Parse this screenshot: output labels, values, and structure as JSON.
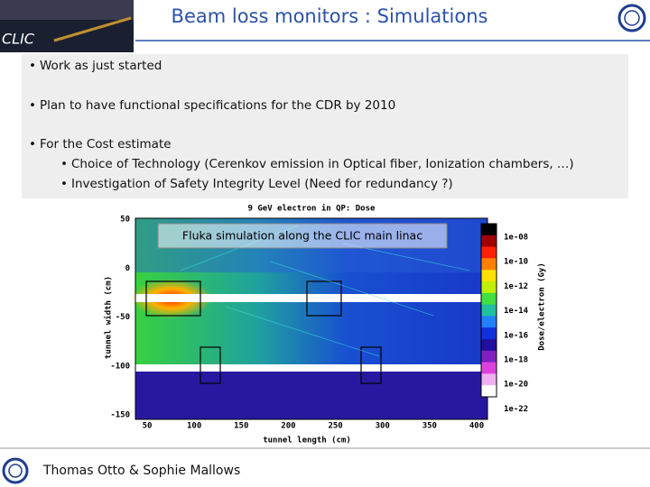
{
  "header": {
    "title": "Beam loss monitors : Simulations",
    "logo_text": "CLIC"
  },
  "bullets": [
    {
      "text": "Work as just started"
    },
    {
      "text": "Plan to have functional specifications for the CDR by 2010"
    },
    {
      "text": "For the Cost estimate",
      "items": [
        "Choice of Technology (Cerenkov emission in Optical fiber, Ionization chambers, …)",
        "Investigation of Safety Integrity Level (Need for redundancy ?)"
      ]
    }
  ],
  "figure": {
    "title": "9 GeV electron in QP: Dose",
    "caption": "Fluka simulation along the CLIC main linac",
    "x_label": "tunnel length (cm)",
    "y_label": "tunnel width (cm)",
    "x_ticks": [
      50,
      100,
      150,
      200,
      250,
      300,
      350,
      400
    ],
    "y_ticks": [
      50,
      0,
      -50,
      -100,
      -150
    ],
    "colorbar_label": "Dose/electron (Gy)",
    "colorbar_ticks": [
      "1e-08",
      "1e-10",
      "1e-12",
      "1e-14",
      "1e-16",
      "1e-18",
      "1e-20",
      "1e-22"
    ]
  },
  "footer": {
    "authors": "Thomas Otto & Sophie Mallows"
  }
}
